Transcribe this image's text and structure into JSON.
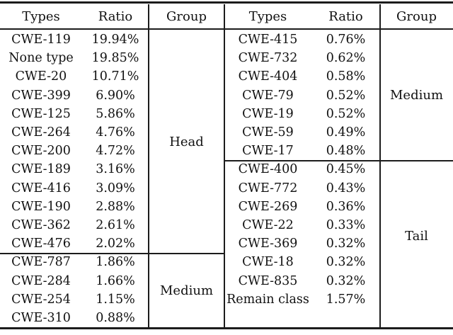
{
  "table": {
    "header": {
      "types": "Types",
      "ratio": "Ratio",
      "group": "Group"
    },
    "left": {
      "rows": [
        {
          "type": "CWE-119",
          "ratio": "19.94%"
        },
        {
          "type": "None type",
          "ratio": "19.85%"
        },
        {
          "type": "CWE-20",
          "ratio": "10.71%"
        },
        {
          "type": "CWE-399",
          "ratio": "6.90%"
        },
        {
          "type": "CWE-125",
          "ratio": "5.86%"
        },
        {
          "type": "CWE-264",
          "ratio": "4.76%"
        },
        {
          "type": "CWE-200",
          "ratio": "4.72%"
        },
        {
          "type": "CWE-189",
          "ratio": "3.16%"
        },
        {
          "type": "CWE-416",
          "ratio": "3.09%"
        },
        {
          "type": "CWE-190",
          "ratio": "2.88%"
        },
        {
          "type": "CWE-362",
          "ratio": "2.61%"
        },
        {
          "type": "CWE-476",
          "ratio": "2.02%"
        },
        {
          "type": "CWE-787",
          "ratio": "1.86%"
        },
        {
          "type": "CWE-284",
          "ratio": "1.66%"
        },
        {
          "type": "CWE-254",
          "ratio": "1.15%"
        },
        {
          "type": "CWE-310",
          "ratio": "0.88%"
        }
      ],
      "groups": [
        {
          "label": "Head",
          "row_span": 12
        },
        {
          "label": "Medium",
          "row_span": 4
        }
      ]
    },
    "right": {
      "rows": [
        {
          "type": "CWE-415",
          "ratio": "0.76%"
        },
        {
          "type": "CWE-732",
          "ratio": "0.62%"
        },
        {
          "type": "CWE-404",
          "ratio": "0.58%"
        },
        {
          "type": "CWE-79",
          "ratio": "0.52%"
        },
        {
          "type": "CWE-19",
          "ratio": "0.52%"
        },
        {
          "type": "CWE-59",
          "ratio": "0.49%"
        },
        {
          "type": "CWE-17",
          "ratio": "0.48%"
        },
        {
          "type": "CWE-400",
          "ratio": "0.45%"
        },
        {
          "type": "CWE-772",
          "ratio": "0.43%"
        },
        {
          "type": "CWE-269",
          "ratio": "0.36%"
        },
        {
          "type": "CWE-22",
          "ratio": "0.33%"
        },
        {
          "type": "CWE-369",
          "ratio": "0.32%"
        },
        {
          "type": "CWE-18",
          "ratio": "0.32%"
        },
        {
          "type": "CWE-835",
          "ratio": "0.32%"
        },
        {
          "type": "Remain class",
          "ratio": "1.57%"
        }
      ],
      "groups": [
        {
          "label": "Medium",
          "row_span": 7
        },
        {
          "label": "Tail",
          "row_span": 8
        }
      ]
    },
    "colors": {
      "text": "#111111",
      "rule": "#1c1c1c",
      "background": "#ffffff"
    }
  }
}
